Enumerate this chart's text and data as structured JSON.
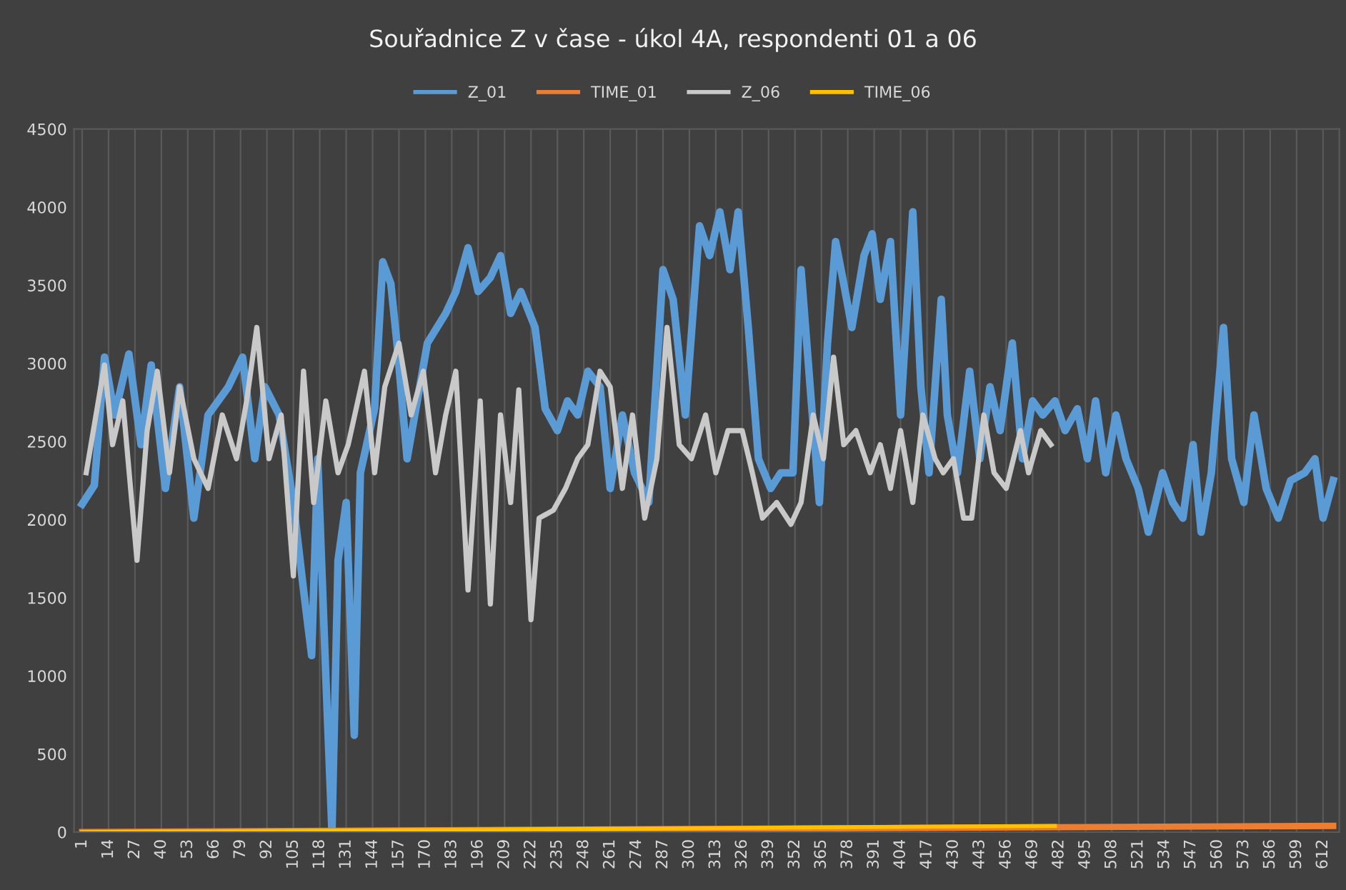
{
  "chart_data": {
    "type": "line",
    "title": "Souřadnice Z v čase - úkol 4A, respondenti 01 a 06",
    "xlim": [
      -3,
      620
    ],
    "ylim": [
      0,
      4500
    ],
    "yticks": [
      0,
      500,
      1000,
      1500,
      2000,
      2500,
      3000,
      3500,
      4000,
      4500
    ],
    "xticks": [
      1,
      14,
      27,
      40,
      53,
      66,
      79,
      92,
      105,
      118,
      131,
      144,
      157,
      170,
      183,
      196,
      209,
      222,
      235,
      248,
      261,
      274,
      287,
      300,
      313,
      326,
      339,
      352,
      365,
      378,
      391,
      404,
      417,
      430,
      443,
      456,
      469,
      482,
      495,
      508,
      521,
      534,
      547,
      560,
      573,
      586,
      599,
      612
    ],
    "grid": "x",
    "legend": "top",
    "line_style": "solid",
    "marker": "none",
    "series": [
      {
        "name": "Z_01",
        "color": "#5b9bd5",
        "x": [
          1,
          7,
          12,
          17,
          24,
          30,
          35,
          42,
          49,
          56,
          63,
          73,
          80,
          86,
          91,
          98,
          105,
          110,
          114,
          117,
          121,
          124,
          127,
          131,
          135,
          138,
          145,
          149,
          153,
          156,
          161,
          171,
          180,
          185,
          191,
          196,
          202,
          207,
          212,
          217,
          224,
          229,
          235,
          240,
          245,
          250,
          256,
          261,
          267,
          273,
          280,
          287,
          292,
          298,
          305,
          310,
          315,
          320,
          324,
          329,
          334,
          340,
          345,
          351,
          355,
          360,
          364,
          368,
          372,
          376,
          380,
          386,
          390,
          394,
          399,
          404,
          410,
          414,
          418,
          424,
          427,
          432,
          438,
          443,
          448,
          453,
          459,
          464,
          469,
          474,
          480,
          485,
          491,
          496,
          500,
          505,
          510,
          515,
          521,
          526,
          533,
          538,
          543,
          548,
          552,
          557,
          563,
          567,
          573,
          578,
          584,
          590,
          596,
          603,
          608,
          612,
          617
        ],
        "values": [
          2100,
          2220,
          3040,
          2670,
          3060,
          2480,
          2990,
          2200,
          2850,
          2010,
          2670,
          2850,
          3040,
          2390,
          2850,
          2670,
          2110,
          1550,
          1130,
          2390,
          990,
          0,
          1740,
          2110,
          620,
          2300,
          2710,
          3650,
          3510,
          3130,
          2390,
          3130,
          3320,
          3460,
          3740,
          3460,
          3550,
          3690,
          3320,
          3460,
          3230,
          2710,
          2570,
          2760,
          2670,
          2950,
          2850,
          2200,
          2670,
          2300,
          2110,
          3600,
          3410,
          2670,
          3880,
          3690,
          3970,
          3600,
          3970,
          3230,
          2390,
          2200,
          2300,
          2300,
          3600,
          2760,
          2110,
          3130,
          3780,
          3510,
          3230,
          3690,
          3830,
          3410,
          3780,
          2670,
          3970,
          2850,
          2300,
          3410,
          2670,
          2300,
          2950,
          2390,
          2850,
          2570,
          3130,
          2390,
          2760,
          2670,
          2760,
          2570,
          2710,
          2390,
          2760,
          2300,
          2670,
          2390,
          2200,
          1920,
          2300,
          2110,
          2010,
          2480,
          1920,
          2300,
          3230,
          2390,
          2110,
          2670,
          2200,
          2010,
          2250,
          2300,
          2390,
          2010,
          2250
        ]
      },
      {
        "name": "TIME_01",
        "color": "#ed7d31",
        "x": [
          1,
          300,
          617
        ],
        "values": [
          0,
          20,
          40
        ]
      },
      {
        "name": "Z_06",
        "color": "#c9c9c9",
        "x": [
          3,
          12,
          16,
          21,
          28,
          33,
          38,
          44,
          49,
          56,
          63,
          70,
          77,
          82,
          87,
          93,
          99,
          105,
          110,
          115,
          121,
          127,
          132,
          140,
          145,
          150,
          157,
          163,
          169,
          175,
          180,
          185,
          191,
          197,
          202,
          207,
          212,
          216,
          222,
          226,
          233,
          239,
          245,
          250,
          256,
          261,
          267,
          272,
          278,
          284,
          289,
          295,
          301,
          308,
          313,
          319,
          326,
          331,
          336,
          343,
          350,
          355,
          361,
          366,
          371,
          376,
          382,
          389,
          394,
          399,
          404,
          410,
          415,
          421,
          425,
          430,
          435,
          439,
          445,
          450,
          456,
          463,
          467,
          473,
          478
        ],
        "values": [
          2300,
          2990,
          2480,
          2760,
          1740,
          2570,
          2950,
          2300,
          2850,
          2390,
          2200,
          2670,
          2390,
          2760,
          3230,
          2390,
          2670,
          1640,
          2950,
          2110,
          2760,
          2300,
          2480,
          2950,
          2300,
          2850,
          3130,
          2670,
          2950,
          2300,
          2670,
          2950,
          1550,
          2760,
          1460,
          2670,
          2110,
          2830,
          1360,
          2010,
          2060,
          2200,
          2390,
          2480,
          2950,
          2850,
          2200,
          2670,
          2010,
          2390,
          3230,
          2480,
          2390,
          2670,
          2300,
          2570,
          2570,
          2300,
          2010,
          2110,
          1970,
          2110,
          2670,
          2390,
          3040,
          2480,
          2570,
          2300,
          2480,
          2200,
          2570,
          2110,
          2670,
          2390,
          2300,
          2390,
          2010,
          2010,
          2670,
          2300,
          2200,
          2570,
          2300,
          2570,
          2480
        ]
      },
      {
        "name": "TIME_06",
        "color": "#ffc000",
        "x": [
          1,
          480
        ],
        "values": [
          0,
          40
        ]
      }
    ]
  }
}
